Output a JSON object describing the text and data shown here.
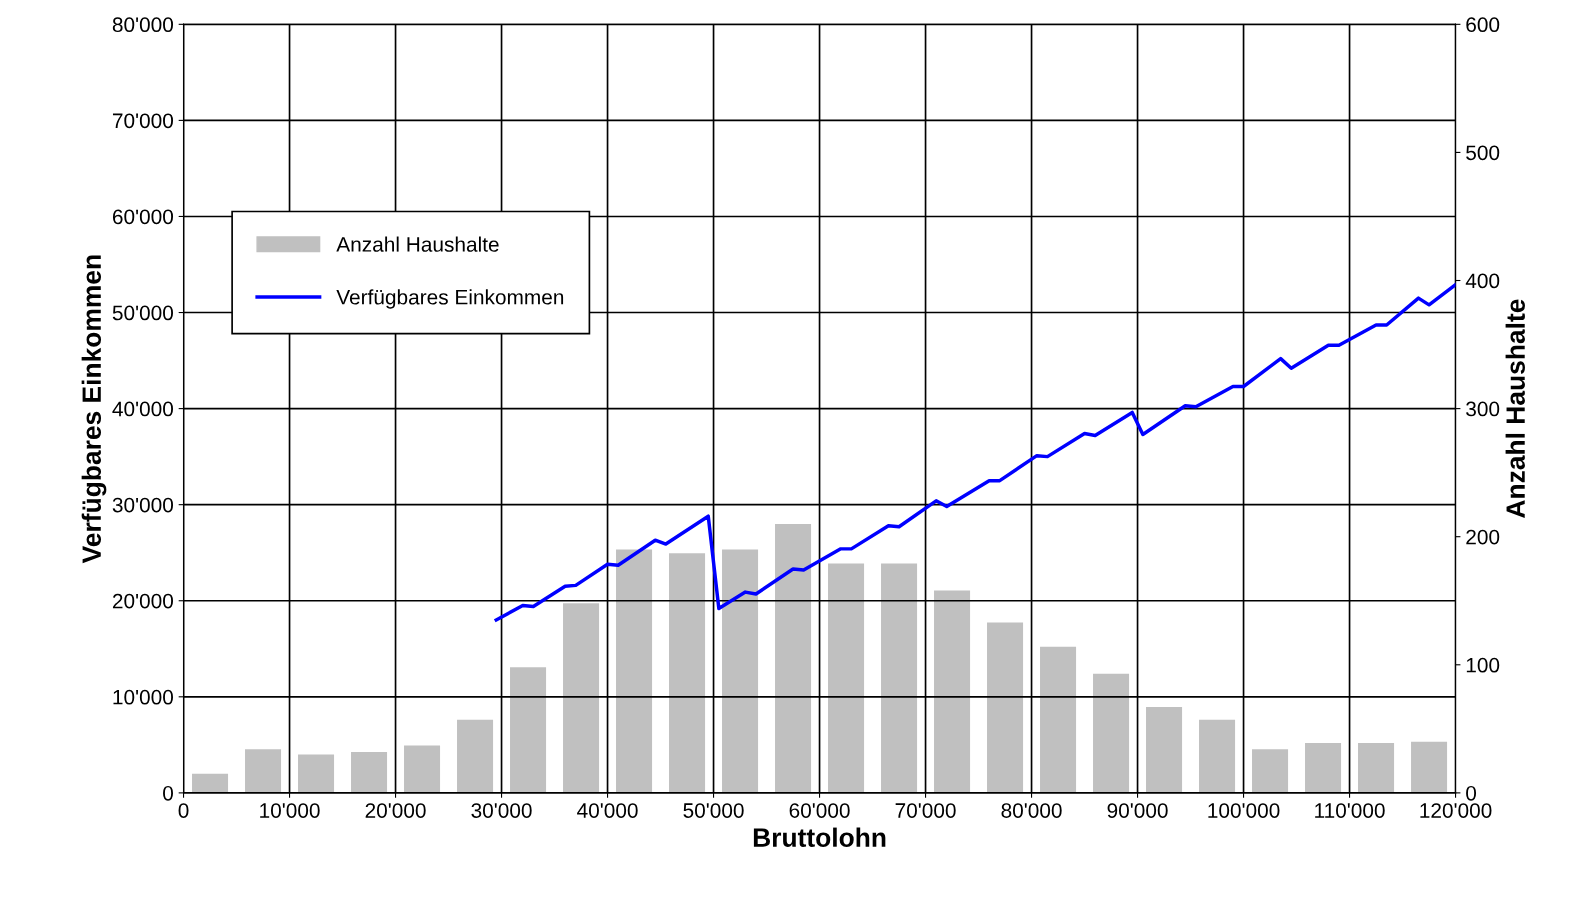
{
  "chart_data": {
    "type": "line",
    "xlabel": "Bruttolohn",
    "ylabel": "Verfügbares Einkommen",
    "y2label": "Anzahl Haushalte",
    "xlim": [
      0,
      120000
    ],
    "xticks": [
      0,
      {
        "value": 10000,
        "label": "10'000"
      },
      {
        "value": 20000,
        "label": "20'000"
      },
      {
        "value": 30000,
        "label": "30'000"
      },
      {
        "value": 40000,
        "label": "40'000"
      },
      {
        "value": 50000,
        "label": "50'000"
      },
      {
        "value": 60000,
        "label": "60'000"
      },
      {
        "value": 70000,
        "label": "70'000"
      },
      {
        "value": 80000,
        "label": "80'000"
      },
      {
        "value": 90000,
        "label": "90'000"
      },
      {
        "value": 100000,
        "label": "100'000"
      },
      {
        "value": 110000,
        "label": "110'000"
      },
      {
        "value": 120000,
        "label": "120'000"
      }
    ],
    "ylim": [
      0,
      80000
    ],
    "yticks": [
      0,
      {
        "value": 10000,
        "label": "10'000"
      },
      {
        "value": 20000,
        "label": "20'000"
      },
      {
        "value": 30000,
        "label": "30'000"
      },
      {
        "value": 40000,
        "label": "40'000"
      },
      {
        "value": 50000,
        "label": "50'000"
      },
      {
        "value": 60000,
        "label": "60'000"
      },
      {
        "value": 70000,
        "label": "70'000"
      },
      {
        "value": 80000,
        "label": "80'000"
      }
    ],
    "y2lim": [
      0,
      600
    ],
    "y2ticks": [
      0,
      100,
      200,
      300,
      400,
      500,
      600
    ],
    "grid": true,
    "legend": "top left",
    "series": [
      {
        "name": "Anzahl Haushalte",
        "type": "bar",
        "axis": "y2",
        "color": "#c0c0c0",
        "x": [
          2500,
          7500,
          12500,
          17500,
          22500,
          27500,
          32500,
          37500,
          42500,
          47500,
          52500,
          57500,
          62500,
          67500,
          72500,
          77500,
          82500,
          87500,
          92500,
          97500,
          102500,
          107500,
          112500,
          117500
        ],
        "values": [
          15,
          34,
          30,
          32,
          37,
          57,
          98,
          148,
          190,
          187,
          190,
          210,
          179,
          179,
          158,
          133,
          114,
          93,
          67,
          57,
          34,
          39,
          39,
          40
        ]
      },
      {
        "name": "Verfügbares Einkommen",
        "axis": "y",
        "color": "#0000ff",
        "x": [
          29500,
          32000,
          33000,
          36000,
          37000,
          40000,
          41000,
          44500,
          45500,
          49500,
          50500,
          53000,
          54000,
          57500,
          58500,
          62000,
          63000,
          66500,
          67500,
          71000,
          72000,
          76000,
          77000,
          80500,
          81500,
          85000,
          86000,
          89500,
          90500,
          94500,
          95500,
          99000,
          100000,
          103500,
          104500,
          108000,
          109000,
          112500,
          113500,
          116500,
          117500,
          120000
        ],
        "values": [
          18000,
          19500,
          19400,
          21500,
          21600,
          23800,
          23700,
          26300,
          25900,
          28800,
          19200,
          20900,
          20700,
          23300,
          23200,
          25400,
          25400,
          27800,
          27700,
          30400,
          29800,
          32500,
          32500,
          35100,
          35000,
          37400,
          37200,
          39600,
          37300,
          40300,
          40200,
          42300,
          42300,
          45200,
          44200,
          46600,
          46600,
          48700,
          48700,
          51500,
          50800,
          52900
        ]
      }
    ]
  }
}
